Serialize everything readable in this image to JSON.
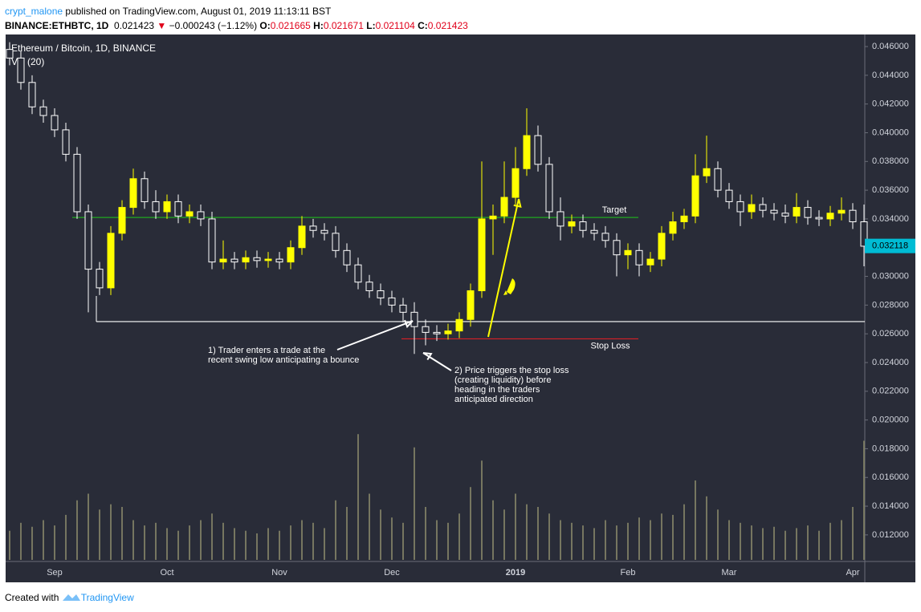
{
  "header": {
    "author": "crypt_malone",
    "published": "published on TradingView.com, August 01, 2019 11:13:11 BST",
    "symbol": "BINANCE:ETHBTC, 1D",
    "last": "0.021423",
    "change": "−0.000243 (−1.12%)",
    "open_label": "O:",
    "open": "0.021665",
    "high_label": "H:",
    "high": "0.021671",
    "low_label": "L:",
    "low": "0.021104",
    "close_label": "C:",
    "close": "0.021423"
  },
  "footer": {
    "created": "Created with",
    "brand": "TradingView"
  },
  "chart_data": {
    "type": "candlestick",
    "title": "Ethereum / Bitcoin, 1D, BINANCE",
    "volume_label": "Vol (20)",
    "up_color": "#ffff00",
    "down_color": "#ffffff",
    "volume_color": "#8a8a6a",
    "categories": [
      null,
      null,
      null,
      null,
      "Sep",
      null,
      null,
      null,
      null,
      null,
      null,
      null,
      null,
      null,
      "Oct",
      null,
      null,
      null,
      null,
      null,
      null,
      null,
      null,
      null,
      "Nov",
      null,
      null,
      null,
      null,
      null,
      null,
      null,
      null,
      null,
      "Dec",
      null,
      null,
      null,
      null,
      null,
      null,
      null,
      null,
      null,
      null,
      "2019",
      null,
      null,
      null,
      null,
      null,
      null,
      null,
      null,
      null,
      "Feb",
      null,
      null,
      null,
      null,
      null,
      null,
      null,
      null,
      "Mar",
      null,
      null,
      null,
      null,
      null,
      null,
      null,
      null,
      null,
      null,
      "Apr",
      null
    ],
    "open": [
      0.0458,
      0.0452,
      0.0435,
      0.0418,
      0.0412,
      0.0402,
      0.0385,
      0.0345,
      0.0305,
      0.0292,
      0.033,
      0.0348,
      0.0368,
      0.0352,
      0.0345,
      0.0352,
      0.0342,
      0.0345,
      0.034,
      0.031,
      0.0312,
      0.031,
      0.0313,
      0.0311,
      0.0312,
      0.031,
      0.032,
      0.0335,
      0.0332,
      0.033,
      0.0318,
      0.0308,
      0.0296,
      0.029,
      0.0285,
      0.028,
      0.0275,
      0.0265,
      0.0261,
      0.026,
      0.0262,
      0.027,
      0.029,
      0.034,
      0.0342,
      0.0355,
      0.0375,
      0.0398,
      0.0378,
      0.0345,
      0.0335,
      0.0338,
      0.0332,
      0.033,
      0.0325,
      0.0315,
      0.0318,
      0.0308,
      0.0312,
      0.033,
      0.0338,
      0.0342,
      0.037,
      0.0375,
      0.036,
      0.0352,
      0.0345,
      0.035,
      0.0346,
      0.0344,
      0.0342,
      0.0348,
      0.0341,
      0.034,
      0.0344,
      0.0346,
      0.0338
    ],
    "high": [
      0.0463,
      0.0457,
      0.044,
      0.0423,
      0.0417,
      0.0407,
      0.039,
      0.035,
      0.031,
      0.0335,
      0.0353,
      0.0375,
      0.0373,
      0.036,
      0.0357,
      0.0357,
      0.035,
      0.035,
      0.0345,
      0.0325,
      0.0317,
      0.0318,
      0.0318,
      0.0317,
      0.0317,
      0.0325,
      0.0342,
      0.034,
      0.0337,
      0.0335,
      0.0323,
      0.0313,
      0.0301,
      0.0295,
      0.029,
      0.0285,
      0.0282,
      0.027,
      0.0266,
      0.0267,
      0.0275,
      0.0295,
      0.038,
      0.035,
      0.038,
      0.039,
      0.0417,
      0.0405,
      0.0383,
      0.0355,
      0.0343,
      0.0343,
      0.0337,
      0.0335,
      0.033,
      0.0323,
      0.0323,
      0.0317,
      0.0335,
      0.0345,
      0.0347,
      0.0385,
      0.0398,
      0.038,
      0.0365,
      0.0357,
      0.0357,
      0.0355,
      0.0351,
      0.035,
      0.0358,
      0.0353,
      0.0346,
      0.0349,
      0.0355,
      0.0351,
      0.035
    ],
    "low": [
      0.0447,
      0.043,
      0.0413,
      0.0407,
      0.0397,
      0.038,
      0.034,
      0.0275,
      0.0287,
      0.0287,
      0.0325,
      0.0343,
      0.0347,
      0.034,
      0.034,
      0.0337,
      0.0337,
      0.0335,
      0.0305,
      0.0305,
      0.0305,
      0.0305,
      0.0306,
      0.0306,
      0.0305,
      0.0305,
      0.0315,
      0.0327,
      0.0325,
      0.0313,
      0.0303,
      0.0291,
      0.0285,
      0.028,
      0.0275,
      0.0268,
      0.0246,
      0.0252,
      0.0255,
      0.0256,
      0.0257,
      0.0265,
      0.0285,
      0.0315,
      0.0337,
      0.035,
      0.037,
      0.0373,
      0.034,
      0.0325,
      0.033,
      0.0327,
      0.0325,
      0.032,
      0.03,
      0.0305,
      0.03,
      0.0303,
      0.0307,
      0.0325,
      0.0333,
      0.0337,
      0.0365,
      0.0355,
      0.0347,
      0.0335,
      0.034,
      0.0341,
      0.0339,
      0.0337,
      0.0337,
      0.0336,
      0.0335,
      0.0335,
      0.0339,
      0.0333,
      0.0307
    ],
    "close": [
      0.0452,
      0.0435,
      0.0418,
      0.0412,
      0.0402,
      0.0385,
      0.0345,
      0.0305,
      0.0292,
      0.033,
      0.0348,
      0.0368,
      0.0352,
      0.0345,
      0.0352,
      0.0342,
      0.0345,
      0.034,
      0.031,
      0.0312,
      0.031,
      0.0313,
      0.0311,
      0.0312,
      0.031,
      0.032,
      0.0335,
      0.0332,
      0.033,
      0.0318,
      0.0308,
      0.0296,
      0.029,
      0.0285,
      0.028,
      0.0275,
      0.0265,
      0.0261,
      0.026,
      0.0262,
      0.027,
      0.029,
      0.034,
      0.0342,
      0.0355,
      0.0375,
      0.0398,
      0.0378,
      0.0345,
      0.0335,
      0.0338,
      0.0332,
      0.033,
      0.0325,
      0.0315,
      0.0318,
      0.0308,
      0.0312,
      0.033,
      0.0338,
      0.0342,
      0.037,
      0.0375,
      0.036,
      0.0352,
      0.0345,
      0.035,
      0.0346,
      0.0344,
      0.0342,
      0.0348,
      0.0341,
      0.034,
      0.0344,
      0.0346,
      0.0338,
      0.0321
    ],
    "volume": [
      22,
      28,
      25,
      30,
      26,
      34,
      45,
      50,
      38,
      42,
      40,
      30,
      26,
      28,
      24,
      22,
      26,
      30,
      35,
      28,
      24,
      22,
      20,
      24,
      22,
      26,
      30,
      28,
      24,
      45,
      40,
      95,
      50,
      38,
      32,
      28,
      85,
      40,
      30,
      28,
      35,
      55,
      75,
      45,
      38,
      50,
      42,
      40,
      35,
      30,
      28,
      26,
      24,
      30,
      26,
      28,
      32,
      30,
      35,
      34,
      42,
      60,
      48,
      38,
      30,
      28,
      26,
      24,
      25,
      22,
      24,
      26,
      22,
      28,
      30,
      40,
      90
    ],
    "vlim": [
      0,
      100
    ],
    "ylim": [
      0.01015,
      0.04684
    ],
    "yticks": [
      {
        "value": 0.046,
        "label": "0.046000"
      },
      {
        "value": 0.044,
        "label": "0.044000"
      },
      {
        "value": 0.042,
        "label": "0.042000"
      },
      {
        "value": 0.04,
        "label": "0.040000"
      },
      {
        "value": 0.038,
        "label": "0.038000"
      },
      {
        "value": 0.036,
        "label": "0.036000"
      },
      {
        "value": 0.034,
        "label": "0.034000"
      },
      {
        "value": 0.032,
        "label": "0.032000"
      },
      {
        "value": 0.03,
        "label": "0.030000"
      },
      {
        "value": 0.028,
        "label": "0.028000"
      },
      {
        "value": 0.026,
        "label": "0.026000"
      },
      {
        "value": 0.024,
        "label": "0.024000"
      },
      {
        "value": 0.022,
        "label": "0.022000"
      },
      {
        "value": 0.02,
        "label": "0.020000"
      },
      {
        "value": 0.018,
        "label": "0.018000"
      },
      {
        "value": 0.016,
        "label": "0.016000"
      },
      {
        "value": 0.014,
        "label": "0.014000"
      },
      {
        "value": 0.012,
        "label": "0.012000"
      }
    ],
    "last_price": {
      "value": 0.032118,
      "label": "0.032118",
      "color": "#00bcd4"
    },
    "levels": [
      {
        "label": "Target",
        "value": 0.0341,
        "color": "#1fa81f"
      },
      {
        "value": 0.02685,
        "color": "#ffffff"
      },
      {
        "label": "Stop Loss",
        "value": 0.02565,
        "color": "#d81f26"
      }
    ],
    "annotations": [
      [
        "1) Trader enters a trade at the",
        "recent swing low anticipating a bounce"
      ],
      [
        "2) Price triggers the stop loss",
        "(creating liquidity) before",
        "heading in the traders",
        "anticipated direction"
      ]
    ]
  }
}
